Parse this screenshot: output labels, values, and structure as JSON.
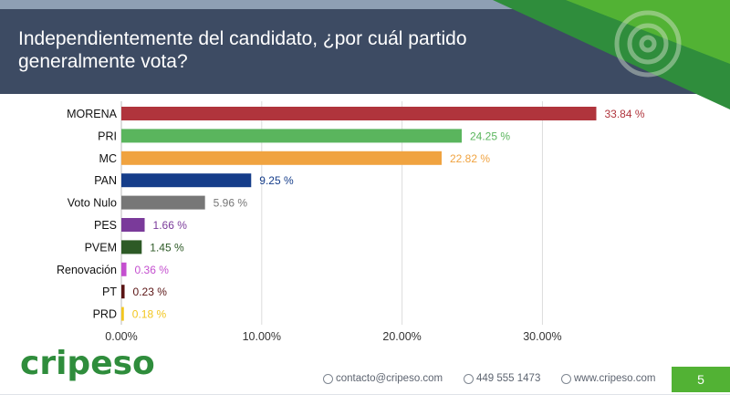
{
  "header": {
    "title_line1": "Independientemente del candidato, ¿por cuál partido",
    "title_line2": "generalmente vota?"
  },
  "chart_data": {
    "type": "bar",
    "orientation": "horizontal",
    "categories": [
      "MORENA",
      "PRI",
      "MC",
      "PAN",
      "Voto Nulo",
      "PES",
      "PVEM",
      "Renovación",
      "PT",
      "PRD"
    ],
    "values": [
      33.84,
      24.25,
      22.82,
      9.25,
      5.96,
      1.66,
      1.45,
      0.36,
      0.23,
      0.18
    ],
    "value_labels": [
      "33.84 %",
      "24.25 %",
      "22.82 %",
      "9.25 %",
      "5.96 %",
      "1.66 %",
      "1.45 %",
      "0.36 %",
      "0.23 %",
      "0.18 %"
    ],
    "colors": [
      "#b0343c",
      "#5ab55d",
      "#f0a340",
      "#153d8a",
      "#777777",
      "#7a3a9a",
      "#2d5a26",
      "#c44fcf",
      "#5a1414",
      "#f2c61f"
    ],
    "xlim": [
      0,
      35
    ],
    "x_ticks": [
      0,
      10,
      20,
      30
    ],
    "x_tick_labels": [
      "0.00%",
      "10.00%",
      "20.00%",
      "30.00%"
    ],
    "grid": true
  },
  "footer": {
    "logo": "cripeso",
    "email": "contacto@cripeso.com",
    "phone": "449 555 1473",
    "website": "www.cripeso.com",
    "page_number": "5",
    "accent": "#52b234"
  }
}
